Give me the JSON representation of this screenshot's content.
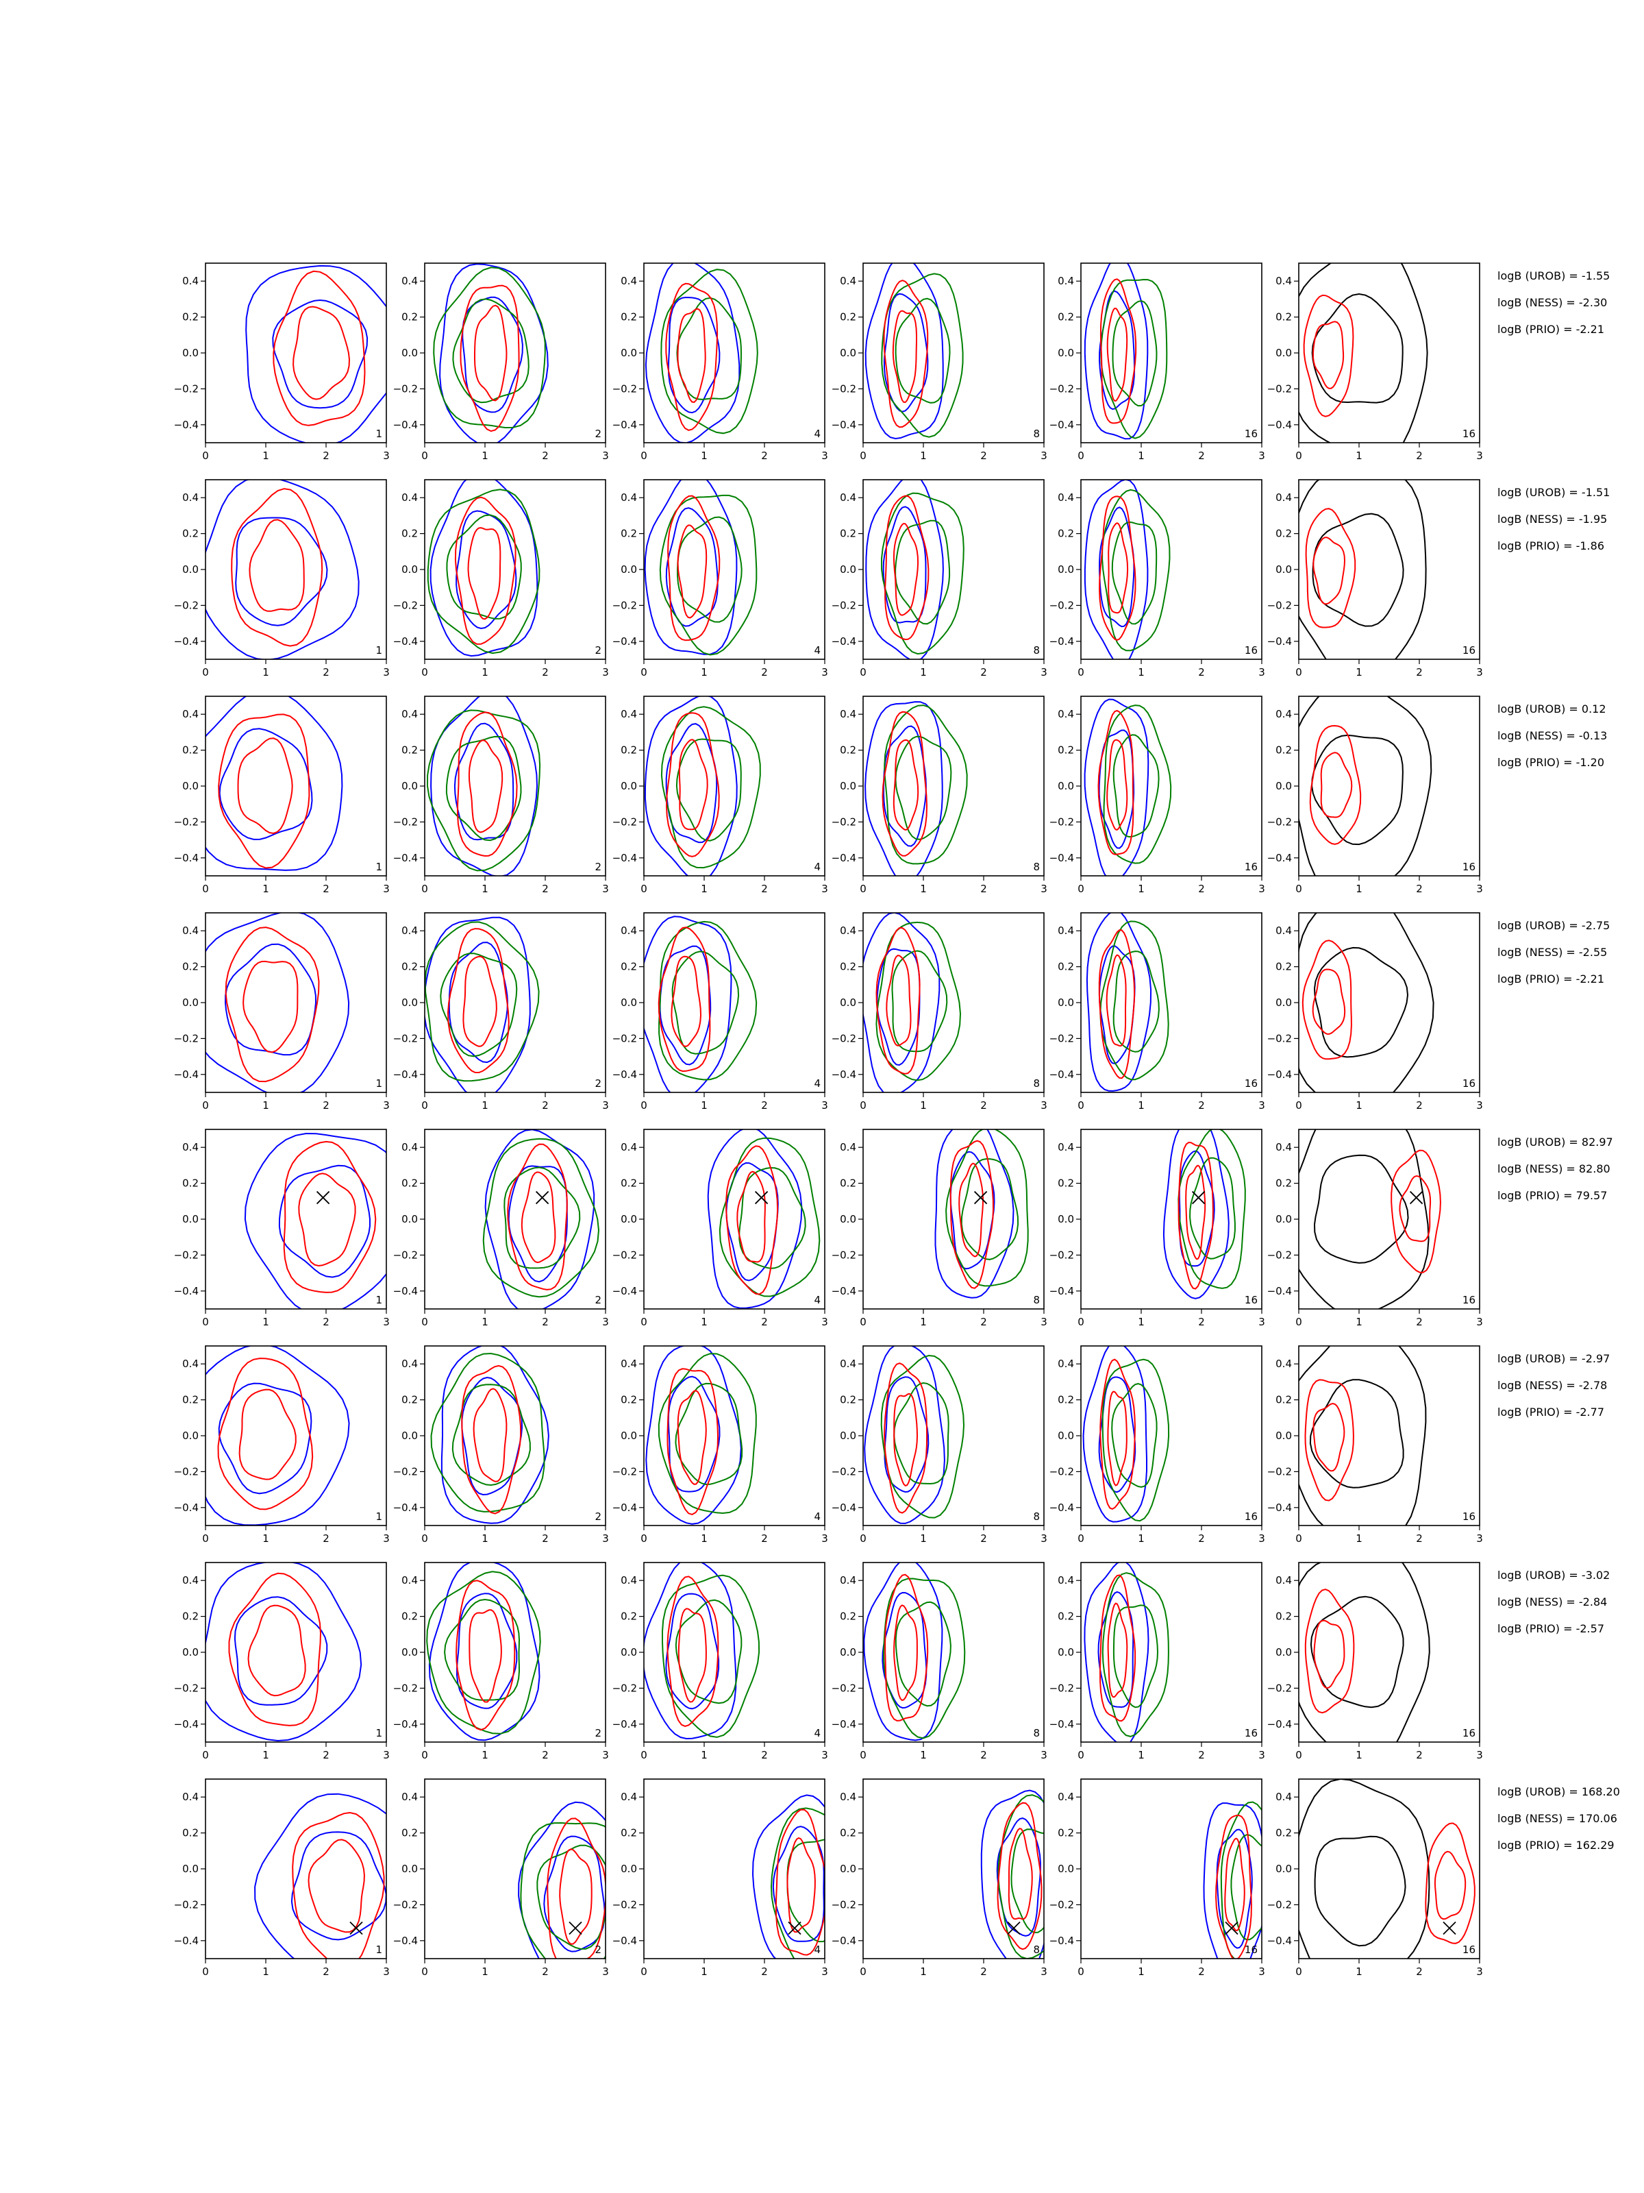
{
  "chart_data": {
    "type": "contour",
    "layout": {
      "rows": 8,
      "cols": 6
    },
    "panel_labels": [
      "1",
      "2",
      "4",
      "8",
      "16",
      "16"
    ],
    "xlim": [
      0,
      3
    ],
    "ylim": [
      -0.5,
      0.5
    ],
    "x_ticks": [
      "0",
      "1",
      "2",
      "3"
    ],
    "y_ticks": [
      "−0.4",
      "−0.2",
      "0.0",
      "0.2",
      "0.4"
    ],
    "colors": {
      "blue": "#0000ff",
      "green": "#008000",
      "red": "#ff0000",
      "black": "#000000",
      "axis": "#000000"
    },
    "rows": [
      {
        "bayes": [
          "logB (UROB) = -1.55",
          "logB (NESS) = -2.30",
          "logB (PRIO) = -2.21"
        ],
        "marker": null,
        "mass": [
          [
            1.9,
            0.0
          ],
          [
            1.1,
            0.0
          ],
          [
            0.8,
            0.0
          ],
          [
            0.7,
            0.0
          ],
          [
            0.6,
            0.0
          ],
          [
            0.5,
            0.0
          ]
        ]
      },
      {
        "bayes": [
          "logB (UROB) = -1.51",
          "logB (NESS) = -1.95",
          "logB (PRIO) = -1.86"
        ],
        "marker": null,
        "mass": [
          [
            1.2,
            0.0
          ],
          [
            1.0,
            0.0
          ],
          [
            0.8,
            0.0
          ],
          [
            0.7,
            0.0
          ],
          [
            0.6,
            0.0
          ],
          [
            0.5,
            0.0
          ]
        ]
      },
      {
        "bayes": [
          "logB (UROB) = 0.12",
          "logB (NESS) = -0.13",
          "logB (PRIO) = -1.20"
        ],
        "marker": null,
        "mass": [
          [
            1.0,
            0.0
          ],
          [
            1.0,
            0.0
          ],
          [
            0.8,
            0.0
          ],
          [
            0.7,
            0.0
          ],
          [
            0.6,
            0.0
          ],
          [
            0.6,
            0.0
          ]
        ]
      },
      {
        "bayes": [
          "logB (UROB) = -2.75",
          "logB (NESS) = -2.55",
          "logB (PRIO) = -2.21"
        ],
        "marker": null,
        "mass": [
          [
            1.1,
            0.0
          ],
          [
            0.9,
            0.0
          ],
          [
            0.7,
            0.0
          ],
          [
            0.6,
            0.0
          ],
          [
            0.6,
            0.0
          ],
          [
            0.5,
            0.0
          ]
        ]
      },
      {
        "bayes": [
          "logB (UROB) = 82.97",
          "logB (NESS) = 82.80",
          "logB (PRIO) = 79.57"
        ],
        "marker": [
          1.95,
          0.12
        ],
        "mass": [
          [
            2.0,
            0.0
          ],
          [
            1.9,
            0.0
          ],
          [
            1.8,
            0.0
          ],
          [
            1.8,
            0.05
          ],
          [
            1.9,
            0.05
          ],
          [
            1.95,
            0.05
          ]
        ]
      },
      {
        "bayes": [
          "logB (UROB) = -2.97",
          "logB (NESS) = -2.78",
          "logB (PRIO) = -2.77"
        ],
        "marker": null,
        "mass": [
          [
            1.0,
            0.0
          ],
          [
            1.1,
            0.0
          ],
          [
            0.8,
            0.0
          ],
          [
            0.7,
            0.0
          ],
          [
            0.6,
            0.0
          ],
          [
            0.5,
            0.0
          ]
        ]
      },
      {
        "bayes": [
          "logB (UROB) = -3.02",
          "logB (NESS) = -2.84",
          "logB (PRIO) = -2.57"
        ],
        "marker": null,
        "mass": [
          [
            1.2,
            0.0
          ],
          [
            1.0,
            0.0
          ],
          [
            0.8,
            0.0
          ],
          [
            0.7,
            0.0
          ],
          [
            0.6,
            0.0
          ],
          [
            0.5,
            0.0
          ]
        ]
      },
      {
        "bayes": [
          "logB (UROB) = 168.20",
          "logB (NESS) = 170.06",
          "logB (PRIO) = 162.29"
        ],
        "marker": [
          2.5,
          -0.33
        ],
        "mass": [
          [
            2.2,
            -0.1
          ],
          [
            2.5,
            -0.15
          ],
          [
            2.6,
            -0.1
          ],
          [
            2.6,
            -0.05
          ],
          [
            2.55,
            -0.1
          ],
          [
            2.5,
            -0.1
          ]
        ]
      }
    ]
  }
}
